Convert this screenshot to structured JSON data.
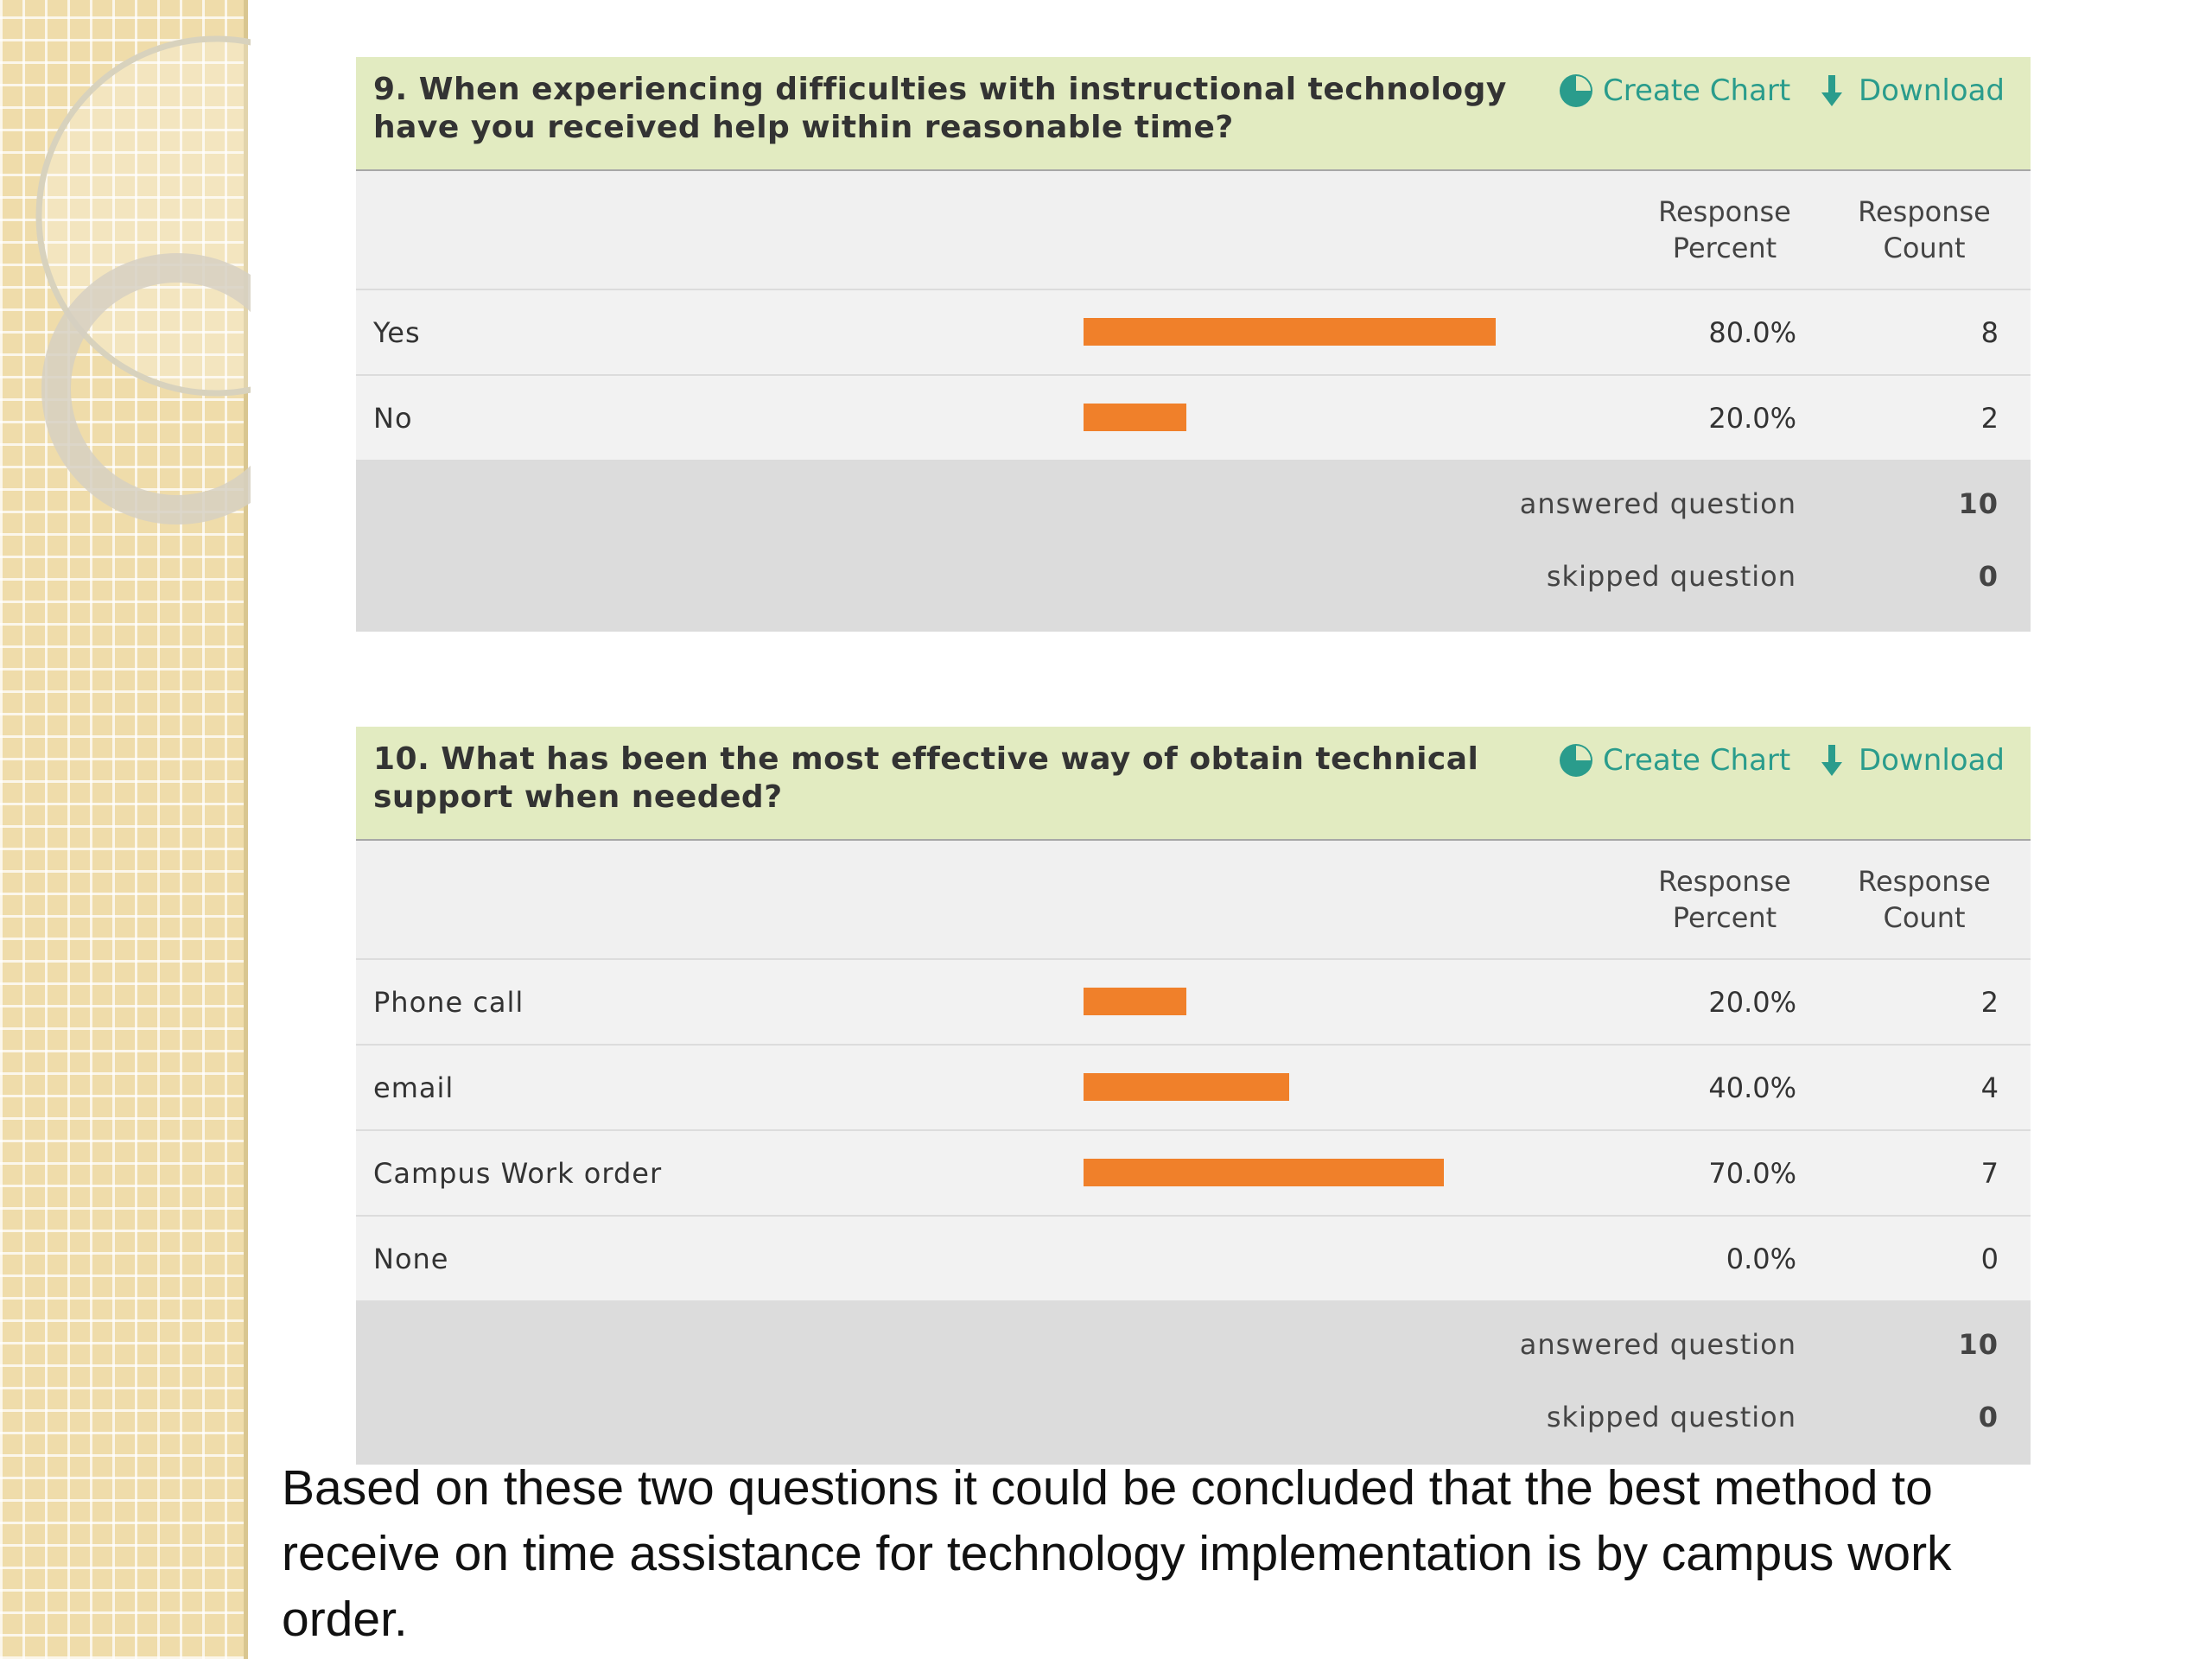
{
  "questions": [
    {
      "title": "9. When experiencing difficulties with instructional technology have you received help within reasonable time?",
      "actions": [
        "Create Chart",
        "Download"
      ],
      "columns": [
        "Response Percent",
        "Response Count"
      ],
      "rows": [
        {
          "label": "Yes",
          "percent": 80,
          "percent_label": "80.0%",
          "count": 8
        },
        {
          "label": "No",
          "percent": 20,
          "percent_label": "20.0%",
          "count": 2
        }
      ],
      "summary": [
        {
          "label": "answered question",
          "value": 10
        },
        {
          "label": "skipped question",
          "value": 0
        }
      ]
    },
    {
      "title": "10. What has been the most effective way of obtain technical support when needed?",
      "actions": [
        "Create Chart",
        "Download"
      ],
      "columns": [
        "Response Percent",
        "Response Count"
      ],
      "rows": [
        {
          "label": "Phone call",
          "percent": 20,
          "percent_label": "20.0%",
          "count": 2
        },
        {
          "label": "email",
          "percent": 40,
          "percent_label": "40.0%",
          "count": 4
        },
        {
          "label": "Campus Work order",
          "percent": 70,
          "percent_label": "70.0%",
          "count": 7
        },
        {
          "label": "None",
          "percent": 0,
          "percent_label": "0.0%",
          "count": 0
        }
      ],
      "summary": [
        {
          "label": "answered question",
          "value": 10
        },
        {
          "label": "skipped question",
          "value": 0
        }
      ]
    }
  ],
  "conclusion": "Based on these two questions it could be concluded that the best method to receive on time assistance for technology implementation is by campus work order."
}
